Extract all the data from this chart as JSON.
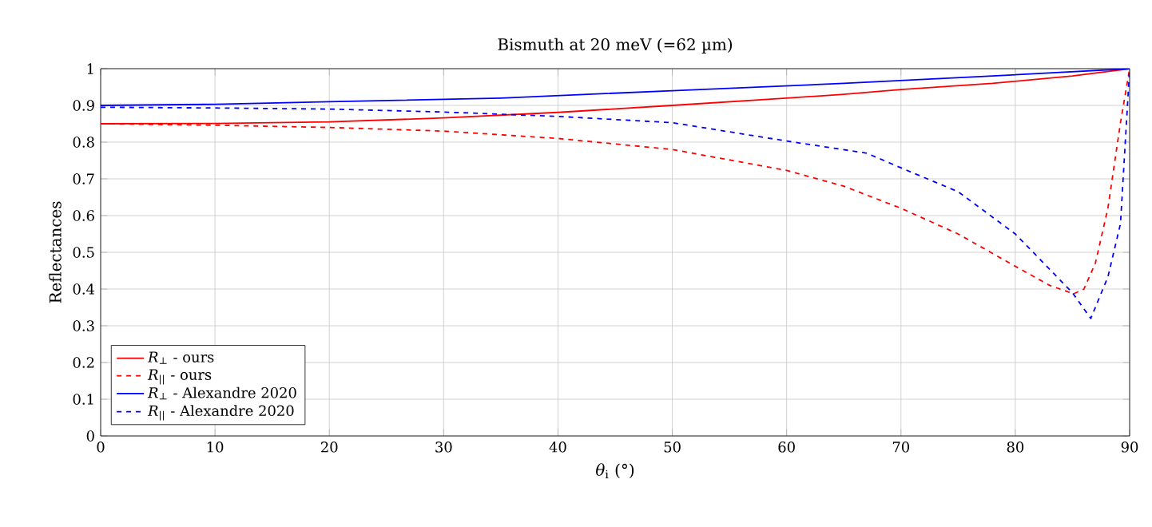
{
  "chart_data": {
    "type": "line",
    "title": "Bismuth at 20 meV (=62 µm)",
    "xlabel": "*θ*$_{i}$ (°)",
    "ylabel": "Reflectances",
    "xlim": [
      0,
      90
    ],
    "ylim": [
      0,
      1
    ],
    "xticks": [
      0,
      10,
      20,
      30,
      40,
      50,
      60,
      70,
      80,
      90
    ],
    "yticks": [
      0,
      0.1,
      0.2,
      0.3,
      0.4,
      0.5,
      0.6,
      0.7,
      0.8,
      0.9,
      1
    ],
    "grid": true,
    "legend": "bottom left",
    "marker": "none",
    "series": [
      {
        "name": "*R*$_{⊥}$ - ours",
        "color": "#ff0000",
        "line_style": "solid",
        "x": [
          0,
          10,
          20,
          30,
          40,
          50,
          60,
          65,
          70,
          78,
          85,
          90
        ],
        "values": [
          0.85,
          0.851,
          0.855,
          0.866,
          0.881,
          0.9,
          0.92,
          0.93,
          0.943,
          0.96,
          0.98,
          1.0
        ]
      },
      {
        "name": "*R*$_{||}$ - ours",
        "color": "#ff0000",
        "line_style": "dashed",
        "x": [
          0,
          10,
          20,
          30,
          40,
          50,
          60,
          65,
          70,
          75,
          80,
          83,
          85.1,
          86,
          87,
          88.1,
          89.2,
          90
        ],
        "values": [
          0.85,
          0.846,
          0.84,
          0.83,
          0.81,
          0.78,
          0.723,
          0.68,
          0.62,
          0.55,
          0.462,
          0.41,
          0.387,
          0.4,
          0.47,
          0.62,
          0.853,
          1.0
        ]
      },
      {
        "name": "*R*$_{⊥}$ - Alexandre 2020",
        "color": "#0000ff",
        "line_style": "solid",
        "x": [
          0,
          10,
          20,
          35,
          50,
          65,
          78,
          90
        ],
        "values": [
          0.9,
          0.903,
          0.91,
          0.92,
          0.94,
          0.96,
          0.98,
          1.0
        ]
      },
      {
        "name": "*R*$_{||}$ - Alexandre 2020",
        "color": "#0000ff",
        "line_style": "dashed",
        "x": [
          0,
          10,
          20,
          30,
          40,
          50,
          60,
          67,
          70,
          75,
          80,
          85,
          86.6,
          88.1,
          89.2,
          90
        ],
        "values": [
          0.895,
          0.893,
          0.89,
          0.882,
          0.87,
          0.853,
          0.803,
          0.77,
          0.73,
          0.665,
          0.55,
          0.39,
          0.32,
          0.433,
          0.578,
          1.0
        ]
      }
    ]
  }
}
